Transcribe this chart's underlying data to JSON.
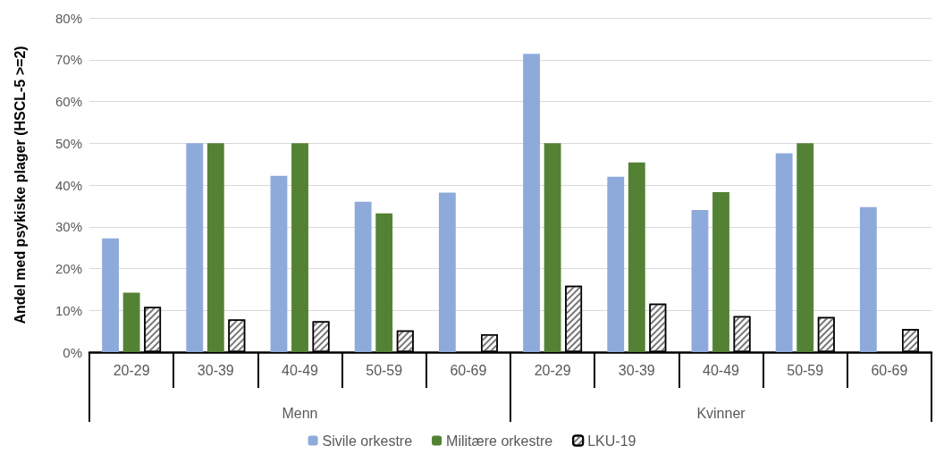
{
  "chart_data": {
    "type": "bar",
    "ylabel": "Andel med psykiske plager (HSCL-5 >=2)",
    "categories": [
      "20-29",
      "30-39",
      "40-49",
      "50-59",
      "60-69",
      "20-29",
      "30-39",
      "40-49",
      "50-59",
      "60-69"
    ],
    "annotations": [
      "Menn",
      "Kvinner"
    ],
    "series": [
      {
        "name": "Sivile orkestre",
        "color": "#8eaadb",
        "values": [
          27.2,
          50,
          42.2,
          36,
          38.2,
          71.4,
          42,
          34,
          47.6,
          34.7
        ]
      },
      {
        "name": "Militære orkestre",
        "color": "#548235",
        "values": [
          14.2,
          50,
          50,
          33.2,
          null,
          50,
          45.4,
          38.3,
          50,
          null
        ]
      },
      {
        "name": "LKU-19",
        "color": "#ffffff",
        "values": [
          10.8,
          7.8,
          7.4,
          5.2,
          4.3,
          15.9,
          11.6,
          8.6,
          8.4,
          5.5
        ]
      }
    ],
    "ylim": [
      0,
      80
    ],
    "yticks": [
      {
        "value": 0,
        "label": "0%"
      },
      {
        "value": 10,
        "label": "10%"
      },
      {
        "value": 20,
        "label": "20%"
      },
      {
        "value": 30,
        "label": "30%"
      },
      {
        "value": 40,
        "label": "40%"
      },
      {
        "value": 50,
        "label": "50%"
      },
      {
        "value": 60,
        "label": "60%"
      },
      {
        "value": 70,
        "label": "70%"
      },
      {
        "value": 80,
        "label": "80%"
      }
    ],
    "grid": "y",
    "legend": "bottom"
  }
}
